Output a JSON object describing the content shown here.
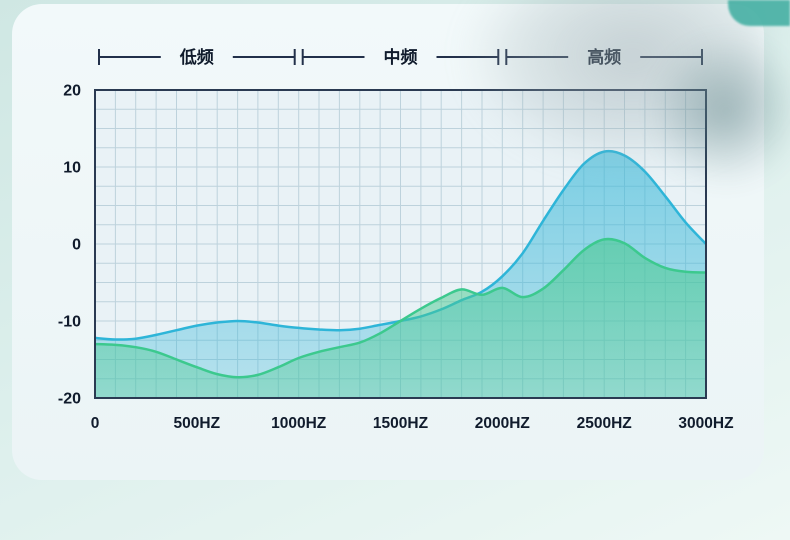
{
  "page": {
    "background_top_color": "#cfe7e3",
    "background_bottom_color": "#eef8f5",
    "card_color": "#f2f9fa",
    "accent_color": "#46b0a4"
  },
  "chart_data": {
    "type": "area",
    "title": "",
    "bands": [
      {
        "label": "低频",
        "range": [
          0,
          1000
        ]
      },
      {
        "label": "中频",
        "range": [
          1000,
          2000
        ]
      },
      {
        "label": "高频",
        "range": [
          2000,
          3000
        ]
      }
    ],
    "xlim": [
      0,
      3000
    ],
    "ylim": [
      -20,
      20
    ],
    "x_ticks": [
      {
        "value": 0,
        "label": "0"
      },
      {
        "value": 500,
        "label": "500HZ"
      },
      {
        "value": 1000,
        "label": "1000HZ"
      },
      {
        "value": 1500,
        "label": "1500HZ"
      },
      {
        "value": 2000,
        "label": "2000HZ"
      },
      {
        "value": 2500,
        "label": "2500HZ"
      },
      {
        "value": 3000,
        "label": "3000HZ"
      }
    ],
    "y_ticks": [
      {
        "value": 20,
        "label": "20"
      },
      {
        "value": 10,
        "label": "10"
      },
      {
        "value": 0,
        "label": "0"
      },
      {
        "value": -10,
        "label": "-10"
      },
      {
        "value": -20,
        "label": "-20"
      }
    ],
    "grid": {
      "x_step": 100,
      "y_step": 2.5,
      "color": "#bdd2dc"
    },
    "plot_bg": "#e9f2f6",
    "frame_color": "#2a3a52",
    "band_color": "#22304a",
    "axis_text_color": "#101b2c",
    "legend": "none",
    "series": [
      {
        "name": "cyan-curve",
        "line_color": "#2eb5d8",
        "fill_color": "#38b8d8",
        "fill_opacity_top": 0.62,
        "fill_opacity_bottom": 0.28,
        "x": [
          0,
          100,
          200,
          300,
          400,
          500,
          600,
          700,
          800,
          900,
          1000,
          1100,
          1200,
          1300,
          1400,
          1500,
          1600,
          1700,
          1800,
          1900,
          2000,
          2100,
          2200,
          2300,
          2400,
          2500,
          2600,
          2700,
          2800,
          2900,
          3000
        ],
        "y": [
          -12.2,
          -12.4,
          -12.3,
          -11.8,
          -11.2,
          -10.6,
          -10.2,
          -10.0,
          -10.2,
          -10.6,
          -10.9,
          -11.1,
          -11.2,
          -11.0,
          -10.5,
          -10.0,
          -9.4,
          -8.5,
          -7.3,
          -6.2,
          -4.2,
          -1.2,
          3.0,
          7.0,
          10.4,
          12.0,
          11.5,
          9.4,
          6.2,
          2.8,
          0.0
        ]
      },
      {
        "name": "green-curve",
        "line_color": "#3cc98e",
        "fill_color": "#49c98f",
        "fill_opacity_top": 0.6,
        "fill_opacity_bottom": 0.34,
        "x": [
          0,
          100,
          200,
          300,
          400,
          500,
          600,
          700,
          800,
          900,
          1000,
          1100,
          1200,
          1300,
          1400,
          1500,
          1600,
          1700,
          1800,
          1900,
          2000,
          2100,
          2200,
          2300,
          2400,
          2500,
          2600,
          2700,
          2800,
          2900,
          3000
        ],
        "y": [
          -13.0,
          -13.1,
          -13.4,
          -14.0,
          -15.0,
          -16.0,
          -16.9,
          -17.3,
          -17.0,
          -16.0,
          -14.8,
          -14.0,
          -13.4,
          -12.8,
          -11.6,
          -10.0,
          -8.4,
          -7.0,
          -5.9,
          -6.6,
          -5.7,
          -6.9,
          -5.8,
          -3.4,
          -0.8,
          0.6,
          0.1,
          -1.8,
          -3.1,
          -3.6,
          -3.7
        ]
      }
    ]
  }
}
